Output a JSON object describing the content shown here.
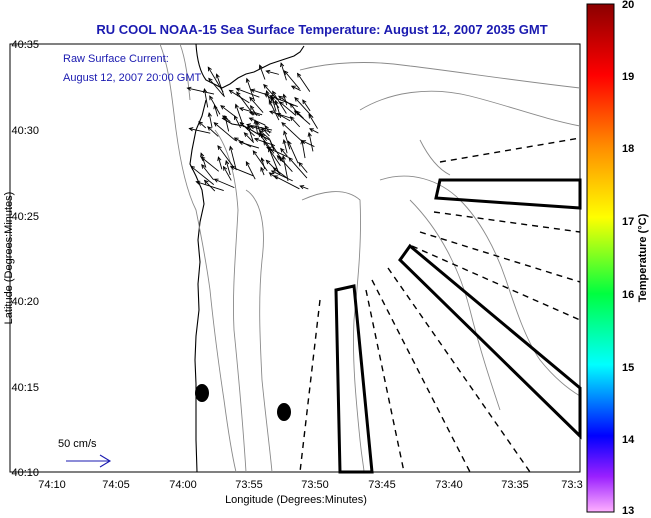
{
  "title": "RU COOL  NOAA-15  Sea Surface Temperature:  August 12, 2007 2035 GMT",
  "legend": {
    "line1": "Raw Surface Current:",
    "line2": "August 12, 2007 20:00 GMT"
  },
  "scale_label": "50 cm/s",
  "axes": {
    "xlabel": "Longitude (Degrees:Minutes)",
    "ylabel": "Latitude (Degrees:Minutes)",
    "xticks": [
      "74:10",
      "74:05",
      "74:00",
      "73:55",
      "73:50",
      "73:45",
      "73:40",
      "73:35",
      "73:3"
    ],
    "yticks": [
      "40:35",
      "40:30",
      "40:25",
      "40:20",
      "40:15",
      "40:10"
    ]
  },
  "colorbar": {
    "label": "Temperature (°C)",
    "ticks": [
      "20",
      "19",
      "18",
      "17",
      "16",
      "15",
      "14",
      "13"
    ],
    "min": 13,
    "max": 20
  },
  "chart_data": {
    "type": "map",
    "title": "RU COOL  NOAA-15  Sea Surface Temperature:  August 12, 2007 2035 GMT",
    "xlabel": "Longitude (Degrees:Minutes)",
    "ylabel": "Latitude (Degrees:Minutes)",
    "xlim": [
      "74:10",
      "73:30"
    ],
    "ylim": [
      "40:10",
      "40:35"
    ],
    "colorbar_range": [
      13,
      20
    ],
    "colorbar_unit": "Temperature (°C)"
  }
}
